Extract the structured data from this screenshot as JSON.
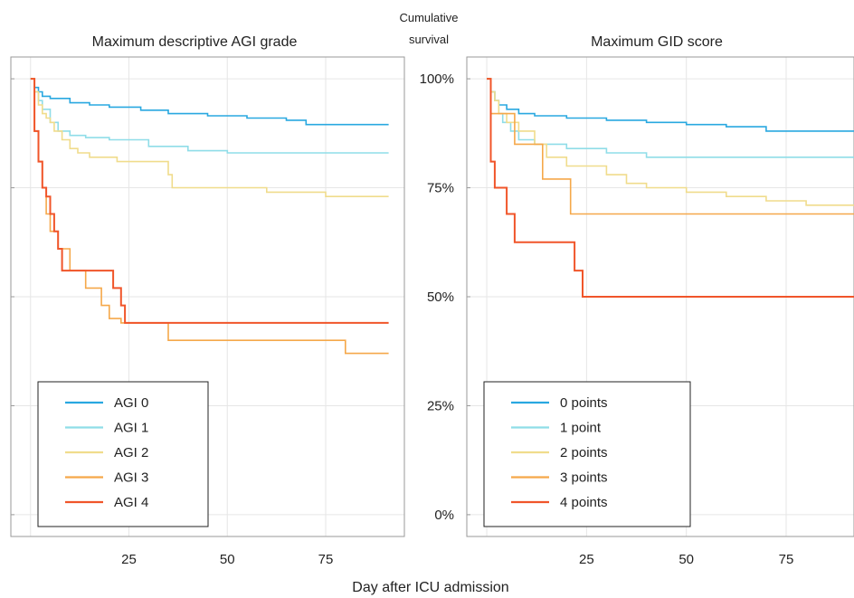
{
  "xlabel": "Day after ICU admission",
  "ylabel_lines": [
    "Cumulative",
    "survival"
  ],
  "yticks": [
    "0%",
    "25%",
    "50%",
    "75%",
    "100%"
  ],
  "colors": {
    "grade0": "#29a8e0",
    "grade1": "#8fdde8",
    "grade2": "#f0dc8c",
    "grade3": "#f5a84a",
    "grade4": "#f0552a",
    "grid": "#e6e6e6",
    "panel_border": "#9a9a9a"
  },
  "chart_data": [
    {
      "type": "line",
      "title": "Maximum descriptive AGI grade",
      "xlim": [
        -5,
        95
      ],
      "ylim": [
        -0.05,
        1.05
      ],
      "xticks": [
        25,
        50,
        75
      ],
      "legend_position": "bottom-left",
      "series": [
        {
          "name": "AGI 0",
          "x": [
            0,
            1,
            2,
            3,
            5,
            10,
            15,
            20,
            28,
            35,
            45,
            55,
            65,
            70,
            75,
            91
          ],
          "y": [
            1.0,
            0.98,
            0.97,
            0.96,
            0.955,
            0.945,
            0.94,
            0.935,
            0.928,
            0.92,
            0.915,
            0.91,
            0.905,
            0.895,
            0.895,
            0.895
          ]
        },
        {
          "name": "AGI 1",
          "x": [
            0,
            1,
            2,
            3,
            5,
            7,
            10,
            14,
            20,
            30,
            40,
            50,
            91
          ],
          "y": [
            1.0,
            0.97,
            0.95,
            0.93,
            0.9,
            0.88,
            0.87,
            0.865,
            0.86,
            0.845,
            0.835,
            0.83,
            0.83
          ]
        },
        {
          "name": "AGI 2",
          "x": [
            0,
            1,
            2,
            3,
            4,
            5,
            6,
            8,
            10,
            12,
            15,
            22,
            35,
            36,
            50,
            60,
            75,
            91
          ],
          "y": [
            1.0,
            0.97,
            0.94,
            0.92,
            0.91,
            0.9,
            0.88,
            0.86,
            0.84,
            0.83,
            0.82,
            0.81,
            0.78,
            0.75,
            0.75,
            0.74,
            0.73,
            0.73
          ]
        },
        {
          "name": "AGI 3",
          "x": [
            0,
            1,
            2,
            3,
            4,
            5,
            7,
            10,
            14,
            18,
            20,
            23,
            35,
            80,
            91
          ],
          "y": [
            1.0,
            0.88,
            0.81,
            0.75,
            0.69,
            0.65,
            0.61,
            0.56,
            0.52,
            0.48,
            0.45,
            0.44,
            0.4,
            0.37,
            0.37
          ]
        },
        {
          "name": "AGI 4",
          "x": [
            0,
            1,
            2,
            3,
            4,
            5,
            6,
            7,
            8,
            10,
            14,
            21,
            23,
            24,
            91
          ],
          "y": [
            1.0,
            0.88,
            0.81,
            0.75,
            0.73,
            0.69,
            0.65,
            0.61,
            0.56,
            0.56,
            0.56,
            0.52,
            0.48,
            0.44,
            0.44
          ]
        }
      ]
    },
    {
      "type": "line",
      "title": "Maximum GID score",
      "xlim": [
        -5,
        92
      ],
      "ylim": [
        -0.05,
        1.05
      ],
      "xticks": [
        25,
        50,
        75
      ],
      "legend_position": "bottom-left",
      "series": [
        {
          "name": "0 points",
          "x": [
            0,
            1,
            2,
            3,
            5,
            8,
            12,
            20,
            30,
            40,
            50,
            60,
            70,
            80,
            92
          ],
          "y": [
            1.0,
            0.97,
            0.95,
            0.94,
            0.93,
            0.92,
            0.915,
            0.91,
            0.905,
            0.9,
            0.895,
            0.89,
            0.88,
            0.88,
            0.88
          ]
        },
        {
          "name": "1 point",
          "x": [
            0,
            1,
            2,
            3,
            4,
            6,
            8,
            12,
            20,
            30,
            40,
            92
          ],
          "y": [
            1.0,
            0.97,
            0.95,
            0.92,
            0.9,
            0.88,
            0.86,
            0.85,
            0.84,
            0.83,
            0.82,
            0.82
          ]
        },
        {
          "name": "2 points",
          "x": [
            0,
            1,
            2,
            3,
            5,
            8,
            12,
            15,
            20,
            30,
            35,
            40,
            50,
            60,
            70,
            80,
            92
          ],
          "y": [
            1.0,
            0.97,
            0.95,
            0.92,
            0.9,
            0.88,
            0.85,
            0.82,
            0.8,
            0.78,
            0.76,
            0.75,
            0.74,
            0.73,
            0.72,
            0.71,
            0.71
          ]
        },
        {
          "name": "3 points",
          "x": [
            0,
            1,
            3,
            7,
            14,
            21,
            92
          ],
          "y": [
            1.0,
            0.92,
            0.92,
            0.85,
            0.77,
            0.69,
            0.69
          ]
        },
        {
          "name": "4 points",
          "x": [
            0,
            1,
            2,
            5,
            7,
            22,
            24,
            92
          ],
          "y": [
            1.0,
            0.81,
            0.75,
            0.69,
            0.625,
            0.56,
            0.5,
            0.5
          ]
        }
      ]
    }
  ]
}
